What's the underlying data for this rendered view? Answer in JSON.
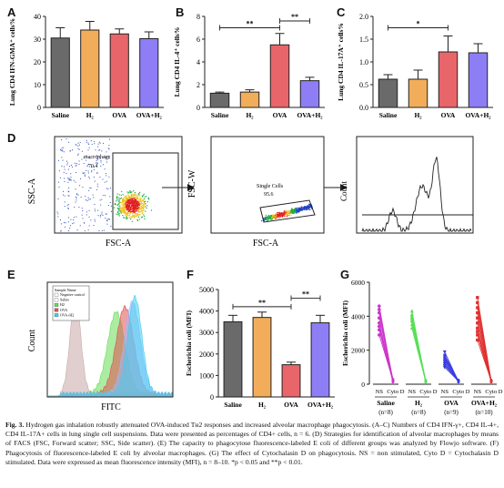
{
  "panel_labels": {
    "A": "A",
    "B": "B",
    "C": "C",
    "D": "D",
    "E": "E",
    "F": "F",
    "G": "G"
  },
  "chart_data": [
    {
      "id": "A",
      "type": "bar",
      "categories": [
        "Saline",
        "H₂",
        "OVA",
        "OVA+H₂"
      ],
      "values": [
        30.5,
        34.0,
        32.3,
        30.2
      ],
      "errors": [
        4.5,
        3.8,
        2.2,
        3.0
      ],
      "ylabel": "Lung CD4 IFN-GMA⁺ cells%",
      "ylim": [
        0,
        40
      ],
      "yticks": [
        0,
        10,
        20,
        30,
        40
      ],
      "colors": [
        "#6a6a6a",
        "#f2ad5b",
        "#e8656a",
        "#8d7ef5"
      ],
      "significance": []
    },
    {
      "id": "B",
      "type": "bar",
      "categories": [
        "Saline",
        "H₂",
        "OVA",
        "OVA+H₂"
      ],
      "values": [
        1.25,
        1.35,
        5.5,
        2.35
      ],
      "errors": [
        0.1,
        0.2,
        1.0,
        0.3
      ],
      "ylabel": "Lung CD4 IL-4⁺ cells%",
      "ylim": [
        0,
        8
      ],
      "yticks": [
        0,
        2,
        4,
        6,
        8
      ],
      "colors": [
        "#6a6a6a",
        "#f2ad5b",
        "#e8656a",
        "#8d7ef5"
      ],
      "significance": [
        {
          "from": 0,
          "to": 2,
          "label": "**",
          "y": 7.0
        },
        {
          "from": 2,
          "to": 3,
          "label": "**",
          "y": 7.6
        }
      ]
    },
    {
      "id": "C",
      "type": "bar",
      "categories": [
        "Saline",
        "H₂",
        "OVA",
        "OVA+H₂"
      ],
      "values": [
        0.62,
        0.62,
        1.22,
        1.2
      ],
      "errors": [
        0.1,
        0.2,
        0.35,
        0.2
      ],
      "ylabel": "Lung CD4 IL-17A⁺ cells%",
      "ylim": [
        0,
        2.0
      ],
      "yticks": [
        0,
        0.5,
        1.0,
        1.5,
        2.0
      ],
      "ytick_labels": [
        "0.0",
        "0.5",
        "1.0",
        "1.5",
        "2.0"
      ],
      "colors": [
        "#6a6a6a",
        "#f2ad5b",
        "#e8656a",
        "#8d7ef5"
      ],
      "significance": [
        {
          "from": 0,
          "to": 2,
          "label": "*",
          "y": 1.75
        }
      ]
    },
    {
      "id": "F",
      "type": "bar",
      "categories": [
        "Saline",
        "H₂",
        "OVA",
        "OVA+H₂"
      ],
      "values": [
        3500,
        3700,
        1500,
        3450
      ],
      "errors": [
        300,
        250,
        120,
        350
      ],
      "ylabel": "Escherichia coli (MFI)",
      "ylim": [
        0,
        5000
      ],
      "yticks": [
        0,
        1000,
        2000,
        3000,
        4000,
        5000
      ],
      "colors": [
        "#6a6a6a",
        "#f2ad5b",
        "#e8656a",
        "#8d7ef5"
      ],
      "significance": [
        {
          "from": 0,
          "to": 2,
          "label": "**",
          "y": 4200
        },
        {
          "from": 2,
          "to": 3,
          "label": "**",
          "y": 4600
        }
      ]
    },
    {
      "id": "G",
      "type": "scatter",
      "ylabel": "Escherichia coli (MFI)",
      "ylim": [
        0,
        6000
      ],
      "yticks": [
        0,
        2000,
        4000,
        6000
      ],
      "x_sub": [
        "NS",
        "Cyto D"
      ],
      "groups": [
        {
          "name": "Saline",
          "n": "(n=8)",
          "color": "#cc33cc",
          "ns": [
            4600,
            4400,
            4200,
            3900,
            3600,
            3400,
            3200,
            2900
          ],
          "cyto": [
            150,
            220,
            260,
            300,
            180,
            120,
            200,
            250
          ]
        },
        {
          "name": "H₂",
          "n": "(n=8)",
          "color": "#55e055",
          "ns": [
            4300,
            4100,
            3900,
            3700,
            3500,
            3300,
            3800,
            4000
          ],
          "cyto": [
            120,
            180,
            150,
            220,
            200,
            160,
            140,
            240
          ]
        },
        {
          "name": "OVA",
          "n": "(n=9)",
          "color": "#3a3ae0",
          "ns": [
            1900,
            1700,
            1600,
            1500,
            1400,
            1300,
            1200,
            1100,
            1000
          ],
          "cyto": [
            150,
            200,
            120,
            180,
            220,
            160,
            140,
            250,
            190
          ]
        },
        {
          "name": "OVA+H₂",
          "n": "(n=10)",
          "color": "#e03030",
          "ns": [
            5100,
            4800,
            4500,
            4200,
            3900,
            3600,
            3300,
            3100,
            2900,
            2600
          ],
          "cyto": [
            150,
            200,
            120,
            250,
            180,
            220,
            160,
            140,
            190,
            210
          ]
        }
      ]
    }
  ],
  "flow_D": {
    "dot1": {
      "ylabel": "SSC-A",
      "xlabel": "FSC-A",
      "gate_label": "macrophage",
      "gate_value": "70.4"
    },
    "dot2": {
      "ylabel": "FSC-W",
      "xlabel": "FSC-A",
      "gate_label": "Single Cells",
      "gate_value": "95.6"
    },
    "hist": {
      "ylabel": "Count"
    }
  },
  "flow_E": {
    "ylabel": "Count",
    "xlabel": "FITC",
    "legend_title": "Sample Name",
    "legend": [
      {
        "label": "Negative control",
        "color": "#ffffff"
      },
      {
        "label": "Saline",
        "color": "#ffffff"
      },
      {
        "label": "H2",
        "color": "#66dd55"
      },
      {
        "label": "OVA",
        "color": "#e05050"
      },
      {
        "label": "OVA+H2",
        "color": "#44ccee"
      }
    ]
  },
  "caption": {
    "fig": "Fig. 3.",
    "text": "Hydrogen gas inhalation robustly attenuated OVA-induced Tʜ2 responses and increased alveolar macrophage phagocytosis. (A–C) Numbers of CD4 IFN-γ+, CD4 IL-4+, CD4 IL-17A+ cells in lung single cell suspensions. Data were presented as percentages of CD4+ cells, n = 6. (D) Strategies for identification of alveolar macrophages by means of FACS (FSC, Forward scatter; SSC, Side scatter). (E) The capacity to phagocytose fluorescence-labeled E coli of different groups was analyzed by Flowjo software. (F) Phagocytosis of fluorescence-labeled E coli by alveolar macrophages. (G) The effect of Cytochalasin D on phagocytosis. NS = non stimulated, Cyto D = Cytochalasin D stimulated. Data were expressed as mean fluorescence intensity (MFI), n = 8–10. *p < 0.05 and **p < 0.01."
  }
}
